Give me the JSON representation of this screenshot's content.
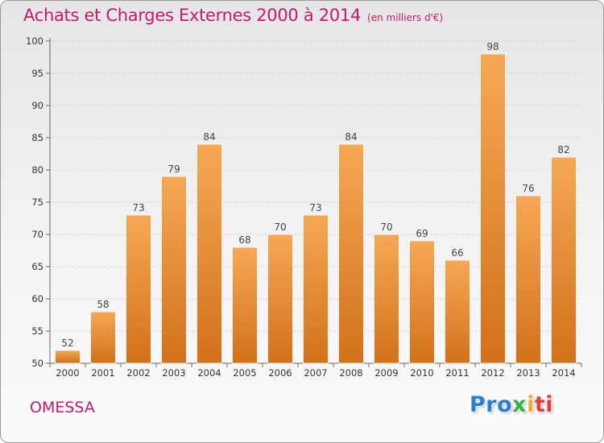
{
  "header": {
    "title": "Achats et Charges Externes 2000 à 2014",
    "unit": "(en milliers d'€)"
  },
  "footer": {
    "place": "OMESSA",
    "logo_parts": [
      "Pro",
      "x",
      "i",
      "ti"
    ]
  },
  "colors": {
    "title": "#c5186e",
    "bar_top": "#f7a855",
    "bar_bottom": "#d2711a"
  },
  "chart_data": {
    "type": "bar",
    "title": "Achats et Charges Externes 2000 à 2014",
    "subtitle": "(en milliers d'€)",
    "categories": [
      "2000",
      "2001",
      "2002",
      "2003",
      "2004",
      "2005",
      "2006",
      "2007",
      "2008",
      "2009",
      "2010",
      "2011",
      "2012",
      "2013",
      "2014"
    ],
    "values": [
      52,
      58,
      73,
      79,
      84,
      68,
      70,
      73,
      84,
      70,
      69,
      66,
      98,
      76,
      82
    ],
    "ylim": [
      50,
      100
    ],
    "yticks": [
      50,
      55,
      60,
      65,
      70,
      75,
      80,
      85,
      90,
      95,
      100
    ],
    "grid": true,
    "data_labels": true
  }
}
